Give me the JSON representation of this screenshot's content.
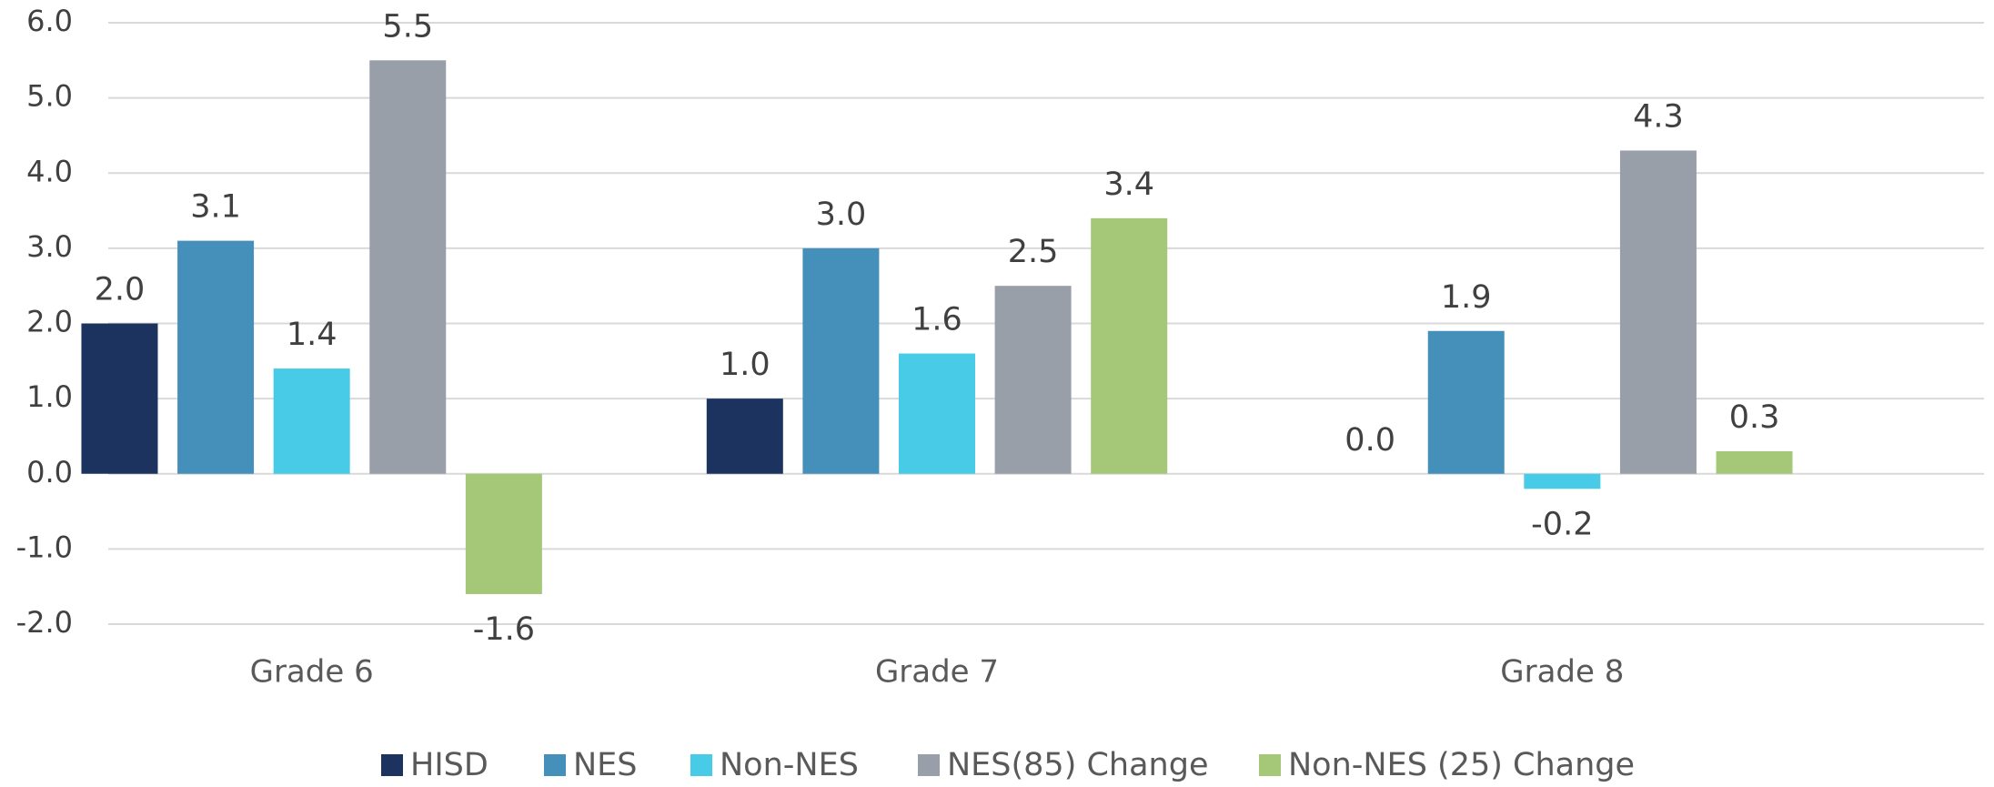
{
  "chart_data": {
    "type": "bar",
    "categories": [
      "Grade 6",
      "Grade 7",
      "Grade 8"
    ],
    "series": [
      {
        "name": "HISD",
        "color": "#1c3360",
        "values": [
          2.0,
          1.0,
          0.0
        ],
        "value_labels": [
          "2.0",
          "1.0",
          "0.0"
        ]
      },
      {
        "name": "NES",
        "color": "#4590bb",
        "values": [
          3.1,
          3.0,
          1.9
        ],
        "value_labels": [
          "3.1",
          "3.0",
          "1.9"
        ]
      },
      {
        "name": "Non-NES",
        "color": "#47cbe6",
        "values": [
          1.4,
          1.6,
          -0.2
        ],
        "value_labels": [
          "1.4",
          "1.6",
          "-0.2"
        ]
      },
      {
        "name": "NES(85) Change",
        "color": "#989fa8",
        "values": [
          5.5,
          2.5,
          4.3
        ],
        "value_labels": [
          "5.5",
          "2.5",
          "4.3"
        ]
      },
      {
        "name": "Non-NES (25) Change",
        "color": "#a4c878",
        "values": [
          -1.6,
          3.4,
          0.3
        ],
        "value_labels": [
          "-1.6",
          "3.4",
          "0.3"
        ]
      }
    ],
    "ylim": [
      -2,
      6
    ],
    "yticks": [
      {
        "value": -2,
        "label": "-2.0"
      },
      {
        "value": -1,
        "label": "-1.0"
      },
      {
        "value": 0,
        "label": "0.0"
      },
      {
        "value": 1,
        "label": "1.0"
      },
      {
        "value": 2,
        "label": "2.0"
      },
      {
        "value": 3,
        "label": "3.0"
      },
      {
        "value": 4,
        "label": "4.0"
      },
      {
        "value": 5,
        "label": "5.0"
      },
      {
        "value": 6,
        "label": "6.0"
      }
    ],
    "grid": true,
    "legend": "bottom"
  }
}
